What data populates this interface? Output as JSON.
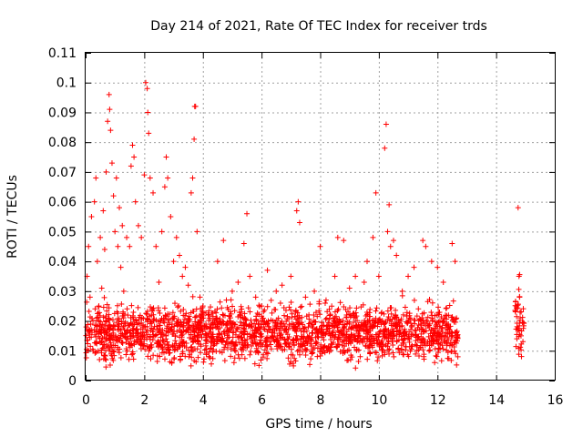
{
  "chart_data": {
    "type": "scatter",
    "title": "Day 214 of 2021, Rate Of TEC Index for receiver trds",
    "xlabel": "GPS time / hours",
    "ylabel": "ROTI / TECUs",
    "xlim": [
      0,
      16
    ],
    "ylim": [
      0,
      0.11
    ],
    "x_ticks": [
      "0",
      "2",
      "4",
      "6",
      "8",
      "10",
      "12",
      "14",
      "16"
    ],
    "y_ticks": [
      "0",
      "0.01",
      "0.02",
      "0.03",
      "0.04",
      "0.05",
      "0.06",
      "0.07",
      "0.08",
      "0.09",
      "0.1",
      "0.11"
    ],
    "grid": true,
    "marker": "plus",
    "color": "#ff0000",
    "series": [
      {
        "points": [
          [
            0.02,
            0.018
          ],
          [
            0.05,
            0.035
          ],
          [
            0.1,
            0.045
          ],
          [
            0.15,
            0.028
          ],
          [
            0.2,
            0.055
          ],
          [
            0.25,
            0.02
          ],
          [
            0.3,
            0.06
          ],
          [
            0.35,
            0.068
          ],
          [
            0.4,
            0.04
          ],
          [
            0.45,
            0.025
          ],
          [
            0.5,
            0.048
          ],
          [
            0.55,
            0.031
          ],
          [
            0.6,
            0.057
          ],
          [
            0.65,
            0.044
          ],
          [
            0.7,
            0.07
          ],
          [
            0.75,
            0.087
          ],
          [
            0.8,
            0.096
          ],
          [
            0.82,
            0.091
          ],
          [
            0.85,
            0.084
          ],
          [
            0.9,
            0.073
          ],
          [
            0.95,
            0.062
          ],
          [
            1.0,
            0.05
          ],
          [
            1.05,
            0.068
          ],
          [
            1.1,
            0.045
          ],
          [
            1.15,
            0.058
          ],
          [
            1.2,
            0.038
          ],
          [
            1.25,
            0.052
          ],
          [
            1.3,
            0.03
          ],
          [
            1.4,
            0.048
          ],
          [
            1.5,
            0.045
          ],
          [
            1.55,
            0.072
          ],
          [
            1.6,
            0.079
          ],
          [
            1.65,
            0.075
          ],
          [
            1.7,
            0.06
          ],
          [
            1.8,
            0.052
          ],
          [
            1.9,
            0.048
          ],
          [
            2.0,
            0.069
          ],
          [
            2.05,
            0.1
          ],
          [
            2.1,
            0.098
          ],
          [
            2.12,
            0.09
          ],
          [
            2.15,
            0.083
          ],
          [
            2.2,
            0.068
          ],
          [
            2.3,
            0.063
          ],
          [
            2.4,
            0.045
          ],
          [
            2.5,
            0.033
          ],
          [
            2.6,
            0.05
          ],
          [
            2.7,
            0.065
          ],
          [
            2.75,
            0.075
          ],
          [
            2.8,
            0.068
          ],
          [
            2.9,
            0.055
          ],
          [
            3.0,
            0.04
          ],
          [
            3.1,
            0.048
          ],
          [
            3.2,
            0.042
          ],
          [
            3.3,
            0.035
          ],
          [
            3.4,
            0.038
          ],
          [
            3.5,
            0.032
          ],
          [
            3.6,
            0.063
          ],
          [
            3.65,
            0.068
          ],
          [
            3.7,
            0.081
          ],
          [
            3.72,
            0.092
          ],
          [
            3.75,
            0.092
          ],
          [
            3.8,
            0.05
          ],
          [
            3.9,
            0.028
          ],
          [
            4.0,
            0.025
          ],
          [
            4.2,
            0.022
          ],
          [
            4.5,
            0.04
          ],
          [
            4.7,
            0.047
          ],
          [
            4.8,
            0.027
          ],
          [
            5.0,
            0.03
          ],
          [
            5.2,
            0.033
          ],
          [
            5.4,
            0.046
          ],
          [
            5.5,
            0.056
          ],
          [
            5.6,
            0.035
          ],
          [
            5.8,
            0.028
          ],
          [
            6.0,
            0.025
          ],
          [
            6.2,
            0.037
          ],
          [
            6.5,
            0.03
          ],
          [
            6.7,
            0.032
          ],
          [
            7.0,
            0.035
          ],
          [
            7.2,
            0.057
          ],
          [
            7.25,
            0.06
          ],
          [
            7.3,
            0.053
          ],
          [
            7.5,
            0.028
          ],
          [
            7.8,
            0.03
          ],
          [
            8.0,
            0.045
          ],
          [
            8.2,
            0.027
          ],
          [
            8.5,
            0.035
          ],
          [
            8.6,
            0.048
          ],
          [
            8.8,
            0.047
          ],
          [
            9.0,
            0.031
          ],
          [
            9.2,
            0.035
          ],
          [
            9.5,
            0.033
          ],
          [
            9.6,
            0.04
          ],
          [
            9.8,
            0.048
          ],
          [
            9.9,
            0.063
          ],
          [
            10.0,
            0.035
          ],
          [
            10.2,
            0.078
          ],
          [
            10.25,
            0.086
          ],
          [
            10.3,
            0.05
          ],
          [
            10.35,
            0.059
          ],
          [
            10.4,
            0.045
          ],
          [
            10.5,
            0.047
          ],
          [
            10.6,
            0.042
          ],
          [
            10.8,
            0.03
          ],
          [
            11.0,
            0.035
          ],
          [
            11.2,
            0.038
          ],
          [
            11.5,
            0.047
          ],
          [
            11.6,
            0.045
          ],
          [
            11.8,
            0.04
          ],
          [
            12.0,
            0.038
          ],
          [
            12.2,
            0.033
          ],
          [
            12.5,
            0.046
          ],
          [
            12.6,
            0.04
          ],
          [
            14.75,
            0.058
          ],
          [
            14.78,
            0.035
          ],
          [
            14.8,
            0.028
          ],
          [
            14.82,
            0.021
          ],
          [
            14.85,
            0.015
          ]
        ],
        "density_band": {
          "segments": [
            {
              "x": [
                0,
                12.7
              ],
              "y_center": 0.016,
              "y_spread": 0.008
            },
            {
              "x": [
                14.65,
                14.95
              ],
              "y_center": 0.02,
              "y_spread": 0.012
            }
          ]
        }
      }
    ]
  }
}
